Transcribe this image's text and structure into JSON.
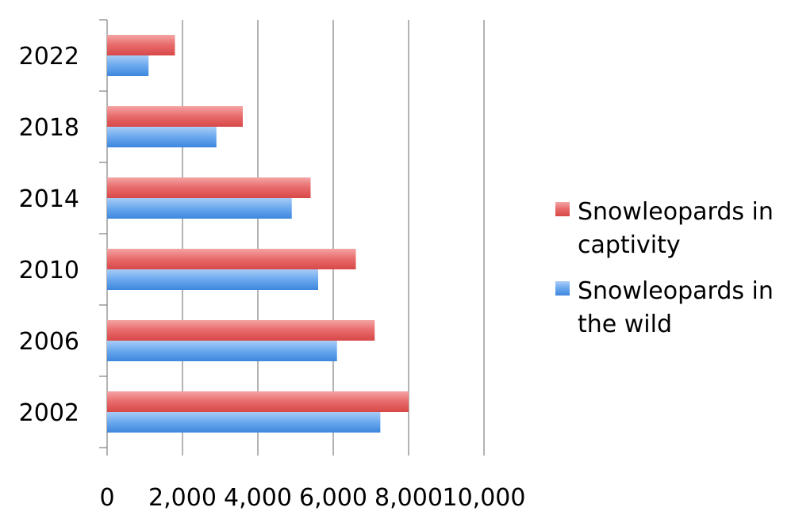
{
  "chart_data": {
    "type": "bar",
    "orientation": "horizontal",
    "categories": [
      "2002",
      "2006",
      "2010",
      "2014",
      "2018",
      "2022"
    ],
    "series": [
      {
        "name": "Snowleopards in captivity",
        "color": "#e05050",
        "values": [
          8000,
          7100,
          6600,
          5400,
          3600,
          1800
        ]
      },
      {
        "name": "Snowleopards in the wild",
        "color": "#4a8fe0",
        "values": [
          7250,
          6100,
          5600,
          4900,
          2900,
          1100
        ]
      }
    ],
    "xlim": [
      0,
      10000
    ],
    "xticks": [
      "0",
      "2,000",
      "4,000",
      "6,000",
      "8,000",
      "10,000"
    ],
    "grid": "vertical",
    "legend_position": "right",
    "legend": [
      {
        "line1": "Snowleopards in",
        "line2": "captivity"
      },
      {
        "line1": "Snowleopards in",
        "line2": "the wild"
      }
    ]
  }
}
